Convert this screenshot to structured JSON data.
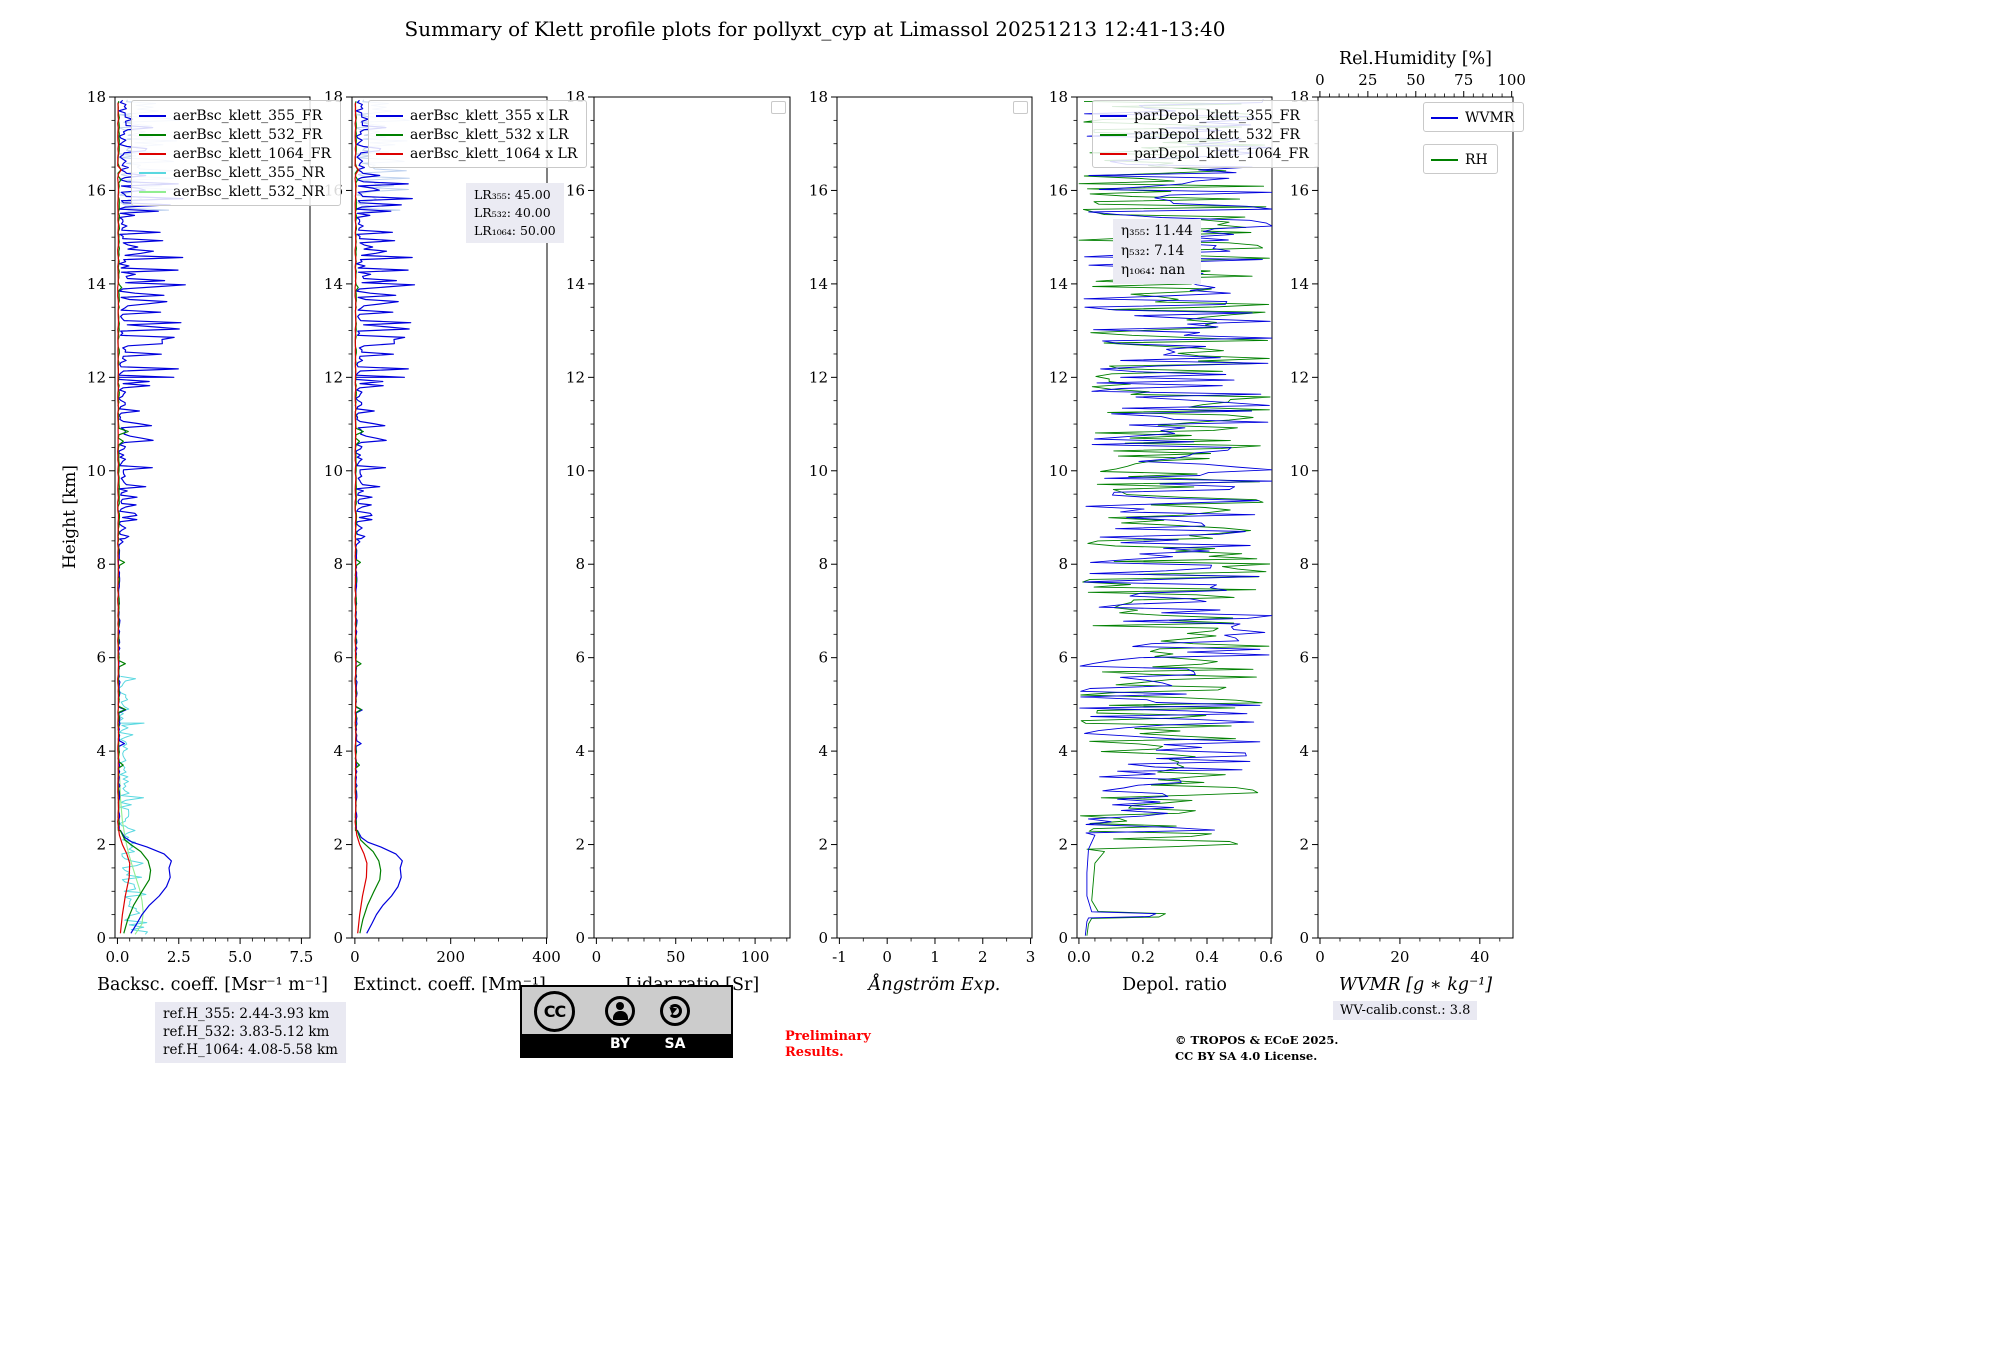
{
  "chart_data": {
    "type": "line",
    "title": "Summary of Klett profile plots for pollyxt_cyp at Limassol 20251213 12:41-13:40",
    "height_axis": {
      "label": "Height [km]",
      "lim": [
        0,
        18
      ],
      "ticks": [
        0,
        2,
        4,
        6,
        8,
        10,
        12,
        14,
        16,
        18
      ]
    },
    "panels": [
      {
        "name": "backscatter",
        "xlabel": "Backsc. coeff. [Msr⁻¹ m⁻¹]",
        "xlim": [
          -0.1,
          7.85
        ],
        "minor_x": 0.5,
        "xticks": [
          {
            "v": 0,
            "l": "0.0"
          },
          {
            "v": 2.5,
            "l": "2.5"
          },
          {
            "v": 5,
            "l": "5.0"
          },
          {
            "v": 7.5,
            "l": "7.5"
          }
        ],
        "series": [
          {
            "name": "aerBsc_klett_355_FR_unc",
            "color": "#a9c3ea",
            "lw": 1.0,
            "opacity": 0.75,
            "seed": 91,
            "segments": [
              {
                "type": "noise",
                "h0": 15.5,
                "h1": 17.95,
                "dh": 0.04,
                "base": 0.06,
                "amp": 0.9,
                "p": 0.45,
                "spike": 2.6
              }
            ]
          },
          {
            "name": "aerBsc_klett_355_NR",
            "color": "#59d8e0",
            "lw": 1.0,
            "seed": 35,
            "segments": [
              {
                "type": "noise",
                "h0": 0.08,
                "h1": 1.0,
                "dh": 0.05,
                "base": 0.25,
                "amp": 1.1,
                "p": 0.35,
                "spike": 1.75
              },
              {
                "type": "noise",
                "h0": 1.0,
                "h1": 2.4,
                "dh": 0.05,
                "base": 0.18,
                "amp": 0.6,
                "p": 0.2,
                "spike": 0.9
              },
              {
                "type": "noise",
                "h0": 2.4,
                "h1": 4.6,
                "dh": 0.05,
                "base": 0.07,
                "amp": 0.4,
                "p": 0.22,
                "spike": 1.25
              },
              {
                "type": "noise",
                "h0": 4.6,
                "h1": 5.6,
                "dh": 0.05,
                "base": 0.05,
                "amp": 0.3,
                "p": 0.15,
                "spike": 0.8
              }
            ]
          },
          {
            "name": "aerBsc_klett_532_NR",
            "color": "#90ee90",
            "lw": 1.1,
            "seed": 53,
            "segments": [
              {
                "type": "pts",
                "pts": [
                  [
                    0.08,
                    0.72
                  ],
                  [
                    0.3,
                    1.0
                  ],
                  [
                    0.55,
                    1.05
                  ],
                  [
                    0.8,
                    1.0
                  ],
                  [
                    1.05,
                    0.9
                  ],
                  [
                    1.3,
                    0.75
                  ],
                  [
                    1.55,
                    0.6
                  ],
                  [
                    1.8,
                    0.46
                  ],
                  [
                    2.1,
                    0.33
                  ],
                  [
                    2.5,
                    0.2
                  ],
                  [
                    3.0,
                    0.12
                  ],
                  [
                    3.6,
                    0.08
                  ],
                  [
                    4.4,
                    0.05
                  ],
                  [
                    5.2,
                    0.04
                  ]
                ]
              }
            ]
          },
          {
            "name": "aerBsc_klett_355_FR",
            "color": "#0000dd",
            "lw": 1.2,
            "seed": 11,
            "segments": [
              {
                "type": "pts",
                "pts": [
                  [
                    0.1,
                    0.55
                  ],
                  [
                    0.3,
                    0.78
                  ],
                  [
                    0.5,
                    1.0
                  ],
                  [
                    0.7,
                    1.3
                  ],
                  [
                    0.9,
                    1.7
                  ],
                  [
                    1.1,
                    2.0
                  ],
                  [
                    1.3,
                    2.15
                  ],
                  [
                    1.5,
                    2.1
                  ],
                  [
                    1.65,
                    2.2
                  ],
                  [
                    1.8,
                    1.9
                  ],
                  [
                    1.95,
                    1.2
                  ],
                  [
                    2.05,
                    0.6
                  ],
                  [
                    2.15,
                    0.3
                  ],
                  [
                    2.3,
                    0.12
                  ]
                ]
              },
              {
                "type": "noise",
                "h0": 2.3,
                "h1": 8.55,
                "dh": 0.06,
                "base": 0.03,
                "amp": 0.07,
                "p": 0.05,
                "spike": 0.35
              },
              {
                "type": "noise",
                "h0": 8.55,
                "h1": 9.3,
                "dh": 0.045,
                "base": 0.04,
                "amp": 0.3,
                "p": 0.3,
                "spike": 0.8
              },
              {
                "type": "noise",
                "h0": 9.3,
                "h1": 12.0,
                "dh": 0.045,
                "base": 0.04,
                "amp": 0.3,
                "p": 0.3,
                "spike": 1.5
              },
              {
                "type": "noise",
                "h0": 12.0,
                "h1": 16.4,
                "dh": 0.045,
                "base": 0.05,
                "amp": 0.4,
                "p": 0.33,
                "spike": 2.8
              },
              {
                "type": "noise",
                "h0": 16.4,
                "h1": 17.95,
                "dh": 0.045,
                "base": 0.05,
                "amp": 0.4,
                "p": 0.3,
                "spike": 1.9
              }
            ]
          },
          {
            "name": "aerBsc_klett_532_FR",
            "color": "#008000",
            "lw": 1.2,
            "seed": 22,
            "segments": [
              {
                "type": "pts",
                "pts": [
                  [
                    0.1,
                    0.26
                  ],
                  [
                    0.4,
                    0.42
                  ],
                  [
                    0.7,
                    0.66
                  ],
                  [
                    1.0,
                    1.0
                  ],
                  [
                    1.25,
                    1.3
                  ],
                  [
                    1.45,
                    1.35
                  ],
                  [
                    1.65,
                    1.25
                  ],
                  [
                    1.85,
                    0.95
                  ],
                  [
                    2.0,
                    0.55
                  ],
                  [
                    2.1,
                    0.3
                  ],
                  [
                    2.3,
                    0.12
                  ]
                ]
              },
              {
                "type": "noise",
                "h0": 2.3,
                "h1": 17.95,
                "dh": 0.07,
                "base": 0.02,
                "amp": 0.06,
                "p": 0.05,
                "spike": 0.5
              }
            ]
          },
          {
            "name": "aerBsc_klett_1064_FR",
            "color": "#dd0000",
            "lw": 1.2,
            "seed": 33,
            "segments": [
              {
                "type": "pts",
                "pts": [
                  [
                    0.1,
                    0.12
                  ],
                  [
                    0.5,
                    0.2
                  ],
                  [
                    0.9,
                    0.32
                  ],
                  [
                    1.3,
                    0.48
                  ],
                  [
                    1.6,
                    0.5
                  ],
                  [
                    1.8,
                    0.38
                  ],
                  [
                    2.0,
                    0.2
                  ],
                  [
                    2.2,
                    0.08
                  ],
                  [
                    2.4,
                    0.03
                  ]
                ]
              },
              {
                "type": "noise",
                "h0": 2.4,
                "h1": 17.95,
                "dh": 0.09,
                "base": 0.01,
                "amp": 0.03,
                "p": 0.02,
                "spike": 0.15
              }
            ]
          }
        ]
      },
      {
        "name": "extinction",
        "xlabel": "Extinct. coeff. [Mm⁻¹]",
        "xlim": [
          -6,
          401
        ],
        "minor_x": 50,
        "xticks": [
          {
            "v": 0,
            "l": "0"
          },
          {
            "v": 200,
            "l": "200"
          },
          {
            "v": 400,
            "l": "400"
          }
        ],
        "series": [
          {
            "name": "aerBsc_klett_355_xLR_unc",
            "scale_of": "aerBsc_klett_355_FR_unc",
            "scale": 45,
            "color": "#a9c3ea",
            "lw": 1.0,
            "opacity": 0.75
          },
          {
            "name": "aerBsc_klett_355_xLR",
            "scale_of": "aerBsc_klett_355_FR",
            "scale": 45,
            "color": "#0000dd",
            "lw": 1.2
          },
          {
            "name": "aerBsc_klett_532_xLR",
            "scale_of": "aerBsc_klett_532_FR",
            "scale": 40,
            "color": "#008000",
            "lw": 1.2
          },
          {
            "name": "aerBsc_klett_1064_xLR",
            "scale_of": "aerBsc_klett_1064_FR",
            "scale": 50,
            "color": "#dd0000",
            "lw": 1.2
          }
        ]
      },
      {
        "name": "lidar-ratio",
        "xlabel": "Lidar ratio [Sr]",
        "xlim": [
          -1.5,
          122
        ],
        "minor_x": 10,
        "xticks": [
          {
            "v": 0,
            "l": "0"
          },
          {
            "v": 50,
            "l": "50"
          },
          {
            "v": 100,
            "l": "100"
          }
        ],
        "series": []
      },
      {
        "name": "angstrom",
        "xlabel": "Ångström Exp.",
        "italic": true,
        "xlim": [
          -1.05,
          3.03
        ],
        "minor_x": 0.5,
        "xticks": [
          {
            "v": -1,
            "l": "-1"
          },
          {
            "v": 0,
            "l": "0"
          },
          {
            "v": 1,
            "l": "1"
          },
          {
            "v": 2,
            "l": "2"
          },
          {
            "v": 3,
            "l": "3"
          }
        ],
        "series": []
      },
      {
        "name": "depol",
        "xlabel": "Depol. ratio",
        "xlim": [
          -0.006,
          0.603
        ],
        "minor_x": 0.05,
        "xticks": [
          {
            "v": 0,
            "l": "0.0"
          },
          {
            "v": 0.2,
            "l": "0.2"
          },
          {
            "v": 0.4,
            "l": "0.4"
          },
          {
            "v": 0.6,
            "l": "0.6"
          }
        ],
        "series": [
          {
            "name": "parDepol_klett_532_FR",
            "color": "#008000",
            "lw": 0.9,
            "seed": 77,
            "segments": [
              {
                "type": "pts",
                "pts": [
                  [
                    0.05,
                    0.025
                  ],
                  [
                    0.3,
                    0.03
                  ],
                  [
                    0.42,
                    0.04
                  ],
                  [
                    0.45,
                    0.25
                  ],
                  [
                    0.52,
                    0.27
                  ],
                  [
                    0.57,
                    0.06
                  ],
                  [
                    0.8,
                    0.04
                  ],
                  [
                    1.2,
                    0.045
                  ],
                  [
                    1.6,
                    0.05
                  ],
                  [
                    1.85,
                    0.08
                  ]
                ]
              },
              {
                "type": "noise",
                "h0": 1.9,
                "h1": 17.95,
                "dh": 0.055,
                "base": 0.0,
                "amp": 0.6,
                "p": 1,
                "spike": 0.6
              }
            ]
          },
          {
            "name": "parDepol_klett_355_FR",
            "color": "#0000dd",
            "lw": 0.9,
            "seed": 66,
            "segments": [
              {
                "type": "pts",
                "pts": [
                  [
                    0.05,
                    0.02
                  ],
                  [
                    0.35,
                    0.025
                  ],
                  [
                    0.43,
                    0.03
                  ],
                  [
                    0.46,
                    0.22
                  ],
                  [
                    0.52,
                    0.24
                  ],
                  [
                    0.56,
                    0.04
                  ],
                  [
                    0.9,
                    0.025
                  ],
                  [
                    1.4,
                    0.025
                  ],
                  [
                    1.9,
                    0.03
                  ],
                  [
                    2.2,
                    0.05
                  ]
                ]
              },
              {
                "type": "noise",
                "h0": 2.25,
                "h1": 3.6,
                "dh": 0.06,
                "base": 0.02,
                "amp": 0.3,
                "p": 0.35,
                "spike": 0.55
              },
              {
                "type": "noise",
                "h0": 3.6,
                "h1": 17.95,
                "dh": 0.06,
                "base": 0.0,
                "amp": 0.62,
                "p": 1,
                "spike": 0.62
              }
            ]
          }
        ]
      },
      {
        "name": "wvmr",
        "xlabel": "WVMR [g ∗ kg⁻¹]",
        "italic": true,
        "xlim": [
          -0.5,
          48.3
        ],
        "minor_x": 5,
        "xticks": [
          {
            "v": 0,
            "l": "0"
          },
          {
            "v": 20,
            "l": "20"
          },
          {
            "v": 40,
            "l": "40"
          }
        ],
        "top_axis": {
          "label": "Rel.Humidity [%]",
          "xlim": [
            -1,
            100.7
          ],
          "minor": 5,
          "ticks": [
            {
              "v": 0,
              "l": "0"
            },
            {
              "v": 25,
              "l": "25"
            },
            {
              "v": 50,
              "l": "50"
            },
            {
              "v": 75,
              "l": "75"
            },
            {
              "v": 100,
              "l": "100"
            }
          ]
        },
        "series": []
      }
    ],
    "legends": {
      "p1": {
        "entries": [
          {
            "label": "aerBsc_klett_355_FR",
            "color": "#0000dd"
          },
          {
            "label": "aerBsc_klett_532_FR",
            "color": "#008000"
          },
          {
            "label": "aerBsc_klett_1064_FR",
            "color": "#dd0000"
          },
          {
            "label": "aerBsc_klett_355_NR",
            "color": "#59d8e0"
          },
          {
            "label": "aerBsc_klett_532_NR",
            "color": "#90ee90"
          }
        ]
      },
      "p2": {
        "entries": [
          {
            "label": "aerBsc_klett_355 x LR",
            "color": "#0000dd"
          },
          {
            "label": "aerBsc_klett_532 x LR",
            "color": "#008000"
          },
          {
            "label": "aerBsc_klett_1064 x LR",
            "color": "#dd0000"
          }
        ]
      },
      "p5": {
        "entries": [
          {
            "label": "parDepol_klett_355_FR",
            "color": "#0000dd"
          },
          {
            "label": "parDepol_klett_532_FR",
            "color": "#008000"
          },
          {
            "label": "parDepol_klett_1064_FR",
            "color": "#dd0000"
          }
        ]
      },
      "p6": {
        "entries": [
          {
            "label": "WVMR",
            "color": "#0000dd"
          },
          {
            "label": "RH",
            "color": "#008000"
          }
        ]
      }
    },
    "annotations": {
      "lr_box": {
        "lines": [
          "LR₃₅₅: 45.00",
          "LR₅₃₂: 40.00",
          "LR₁₀₆₄: 50.00"
        ]
      },
      "eta_box": {
        "lines": [
          "η₃₅₅: 11.44",
          "η₅₃₂: 7.14",
          "η₁₀₆₄: nan"
        ]
      },
      "ref_box": {
        "lines": [
          "ref.H_355: 2.44-3.93 km",
          "ref.H_532: 3.83-5.12 km",
          "ref.H_1064: 4.08-5.58 km"
        ]
      }
    }
  },
  "footer": {
    "preliminary": [
      "Preliminary",
      "Results."
    ],
    "copyright": [
      "© TROPOS & ECoE 2025.",
      "CC BY SA 4.0 License."
    ],
    "wv_calib": "WV-calib.const.: 3.8",
    "cc": {
      "cc": "CC",
      "by": "BY",
      "sa": "SA"
    }
  }
}
